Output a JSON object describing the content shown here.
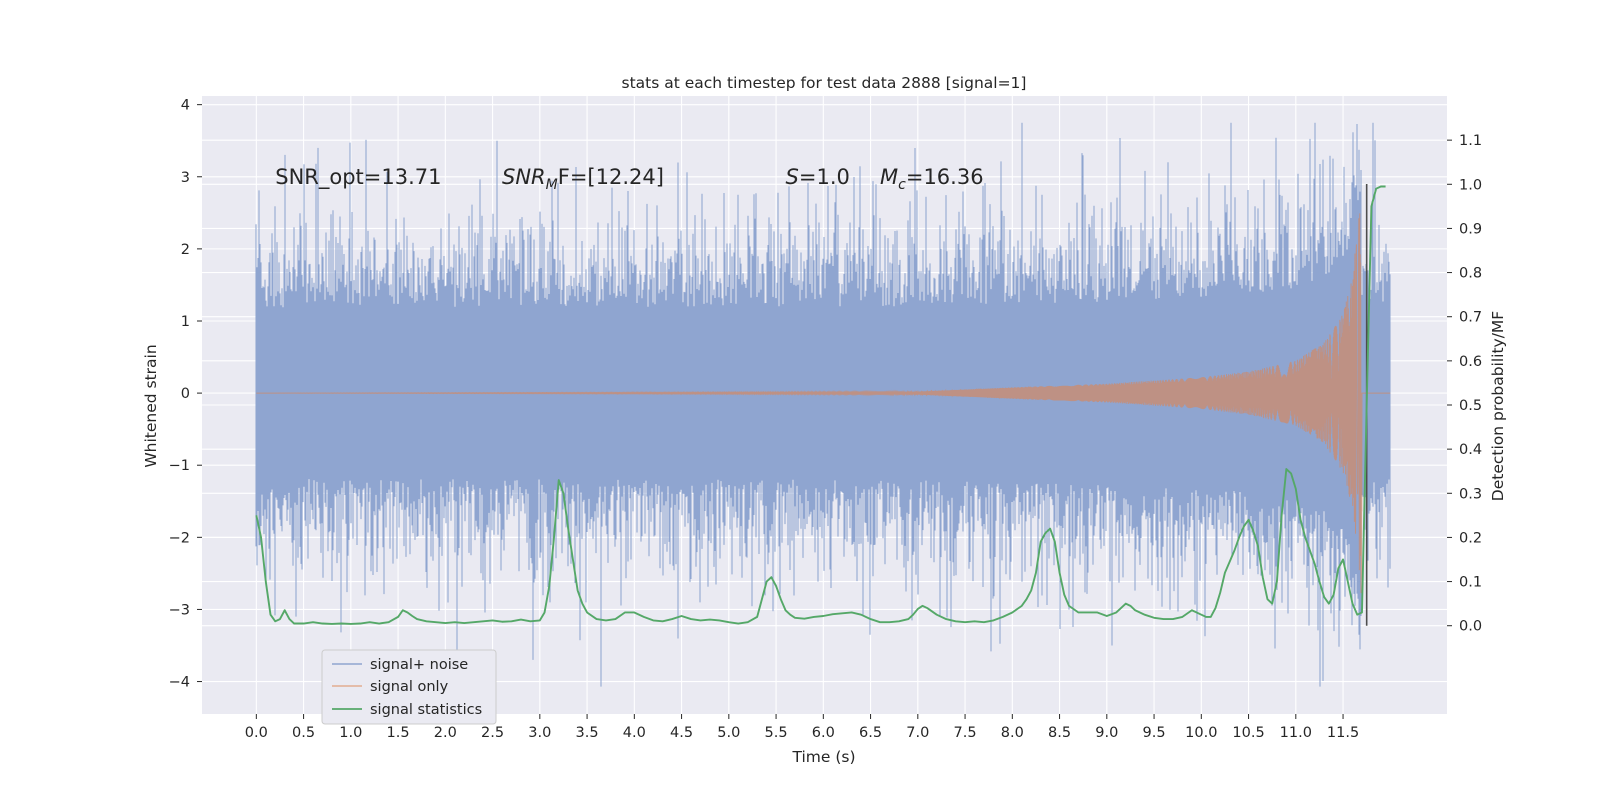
{
  "chart_data": {
    "type": "line",
    "title": "stats at each timestep for test data 2888 [signal=1]",
    "xlabel": "Time (s)",
    "ylabel": "Whitened strain",
    "y2label": "Detection probability/MF",
    "xlim": [
      -0.575,
      12.6
    ],
    "ylim": [
      -4.45,
      4.12
    ],
    "y2lim": [
      -0.2,
      1.2
    ],
    "x_ticks": [
      0.0,
      0.5,
      1.0,
      1.5,
      2.0,
      2.5,
      3.0,
      3.5,
      4.0,
      4.5,
      5.0,
      5.5,
      6.0,
      6.5,
      7.0,
      7.5,
      8.0,
      8.5,
      9.0,
      9.5,
      10.0,
      10.5,
      11.0,
      11.5
    ],
    "x_tick_labels": [
      "0.0",
      "0.5",
      "1.0",
      "1.5",
      "2.0",
      "2.5",
      "3.0",
      "3.5",
      "4.0",
      "4.5",
      "5.0",
      "5.5",
      "6.0",
      "6.5",
      "7.0",
      "7.5",
      "8.0",
      "8.5",
      "9.0",
      "9.5",
      "10.0",
      "10.5",
      "11.0",
      "11.5"
    ],
    "y_ticks": [
      -4,
      -3,
      -2,
      -1,
      0,
      1,
      2,
      3,
      4
    ],
    "y_tick_labels": [
      "−4",
      "−3",
      "−2",
      "−1",
      "0",
      "1",
      "2",
      "3",
      "4"
    ],
    "y2_ticks": [
      0.0,
      0.1,
      0.2,
      0.3,
      0.4,
      0.5,
      0.6,
      0.7,
      0.8,
      0.9,
      1.0,
      1.1
    ],
    "y2_tick_labels": [
      "0.0",
      "0.1",
      "0.2",
      "0.3",
      "0.4",
      "0.5",
      "0.6",
      "0.7",
      "0.8",
      "0.9",
      "1.0",
      "1.1"
    ],
    "grid": true,
    "legend_position": "lower-left",
    "annotations": [
      {
        "prefix": "SNR_opt=13.71",
        "italic": "",
        "sub": "",
        "suffix": "",
        "x": 0.2,
        "y": 2.9
      },
      {
        "prefix": "",
        "italic": "SNR",
        "sub": "M",
        "suffix": "F=[12.24]",
        "x": 2.6,
        "y": 2.9
      },
      {
        "prefix": "",
        "italic": "S",
        "sub": "",
        "suffix": "=1.0",
        "x": 5.6,
        "y": 2.9
      },
      {
        "prefix": "",
        "italic": "M",
        "sub": "c",
        "suffix": "=16.36",
        "x": 6.6,
        "y": 2.9
      }
    ],
    "series": [
      {
        "name": "signal+ noise",
        "axis": "left",
        "color": "#8fa5d0",
        "kind": "noise",
        "t_range": [
          0.0,
          12.0
        ],
        "typical_amplitude": 1.4,
        "max_value": 3.75,
        "min_value": -4.07
      },
      {
        "name": "signal only",
        "axis": "left",
        "color": "#dd8452",
        "kind": "chirp",
        "merger_time": 11.7,
        "amplitude_points": [
          [
            0.0,
            0.0
          ],
          [
            7.0,
            0.02
          ],
          [
            8.0,
            0.08
          ],
          [
            9.0,
            0.13
          ],
          [
            10.0,
            0.22
          ],
          [
            10.5,
            0.3
          ],
          [
            11.0,
            0.45
          ],
          [
            11.3,
            0.7
          ],
          [
            11.5,
            1.1
          ],
          [
            11.6,
            1.6
          ],
          [
            11.7,
            2.9
          ]
        ]
      },
      {
        "name": "signal statistics",
        "axis": "right",
        "color": "#55a868",
        "kind": "line",
        "x": [
          0.0,
          0.05,
          0.1,
          0.15,
          0.2,
          0.25,
          0.3,
          0.35,
          0.4,
          0.5,
          0.6,
          0.7,
          0.8,
          0.9,
          1.0,
          1.1,
          1.2,
          1.3,
          1.4,
          1.5,
          1.55,
          1.6,
          1.65,
          1.7,
          1.8,
          1.9,
          2.0,
          2.1,
          2.2,
          2.3,
          2.4,
          2.5,
          2.6,
          2.7,
          2.8,
          2.9,
          3.0,
          3.05,
          3.1,
          3.15,
          3.2,
          3.25,
          3.3,
          3.35,
          3.4,
          3.45,
          3.5,
          3.6,
          3.7,
          3.8,
          3.9,
          4.0,
          4.1,
          4.2,
          4.3,
          4.4,
          4.5,
          4.6,
          4.7,
          4.8,
          4.9,
          5.0,
          5.1,
          5.2,
          5.3,
          5.35,
          5.4,
          5.45,
          5.5,
          5.55,
          5.6,
          5.65,
          5.7,
          5.8,
          5.9,
          6.0,
          6.1,
          6.2,
          6.3,
          6.4,
          6.5,
          6.6,
          6.7,
          6.8,
          6.9,
          6.95,
          7.0,
          7.05,
          7.1,
          7.2,
          7.3,
          7.4,
          7.5,
          7.6,
          7.7,
          7.8,
          7.9,
          8.0,
          8.1,
          8.15,
          8.2,
          8.25,
          8.3,
          8.35,
          8.4,
          8.45,
          8.5,
          8.55,
          8.6,
          8.7,
          8.8,
          8.9,
          9.0,
          9.1,
          9.15,
          9.2,
          9.25,
          9.3,
          9.4,
          9.5,
          9.6,
          9.7,
          9.8,
          9.9,
          10.0,
          10.05,
          10.1,
          10.15,
          10.2,
          10.25,
          10.3,
          10.35,
          10.4,
          10.45,
          10.5,
          10.55,
          10.6,
          10.65,
          10.7,
          10.75,
          10.8,
          10.85,
          10.9,
          10.95,
          11.0,
          11.05,
          11.1,
          11.15,
          11.2,
          11.25,
          11.3,
          11.35,
          11.4,
          11.45,
          11.5,
          11.55,
          11.6,
          11.65,
          11.7,
          11.75,
          11.8,
          11.85,
          11.9,
          11.95
        ],
        "y": [
          0.25,
          0.2,
          0.1,
          0.025,
          0.01,
          0.015,
          0.035,
          0.015,
          0.005,
          0.005,
          0.008,
          0.005,
          0.004,
          0.005,
          0.004,
          0.005,
          0.008,
          0.005,
          0.008,
          0.02,
          0.035,
          0.03,
          0.022,
          0.015,
          0.01,
          0.008,
          0.006,
          0.008,
          0.006,
          0.008,
          0.01,
          0.012,
          0.009,
          0.01,
          0.014,
          0.01,
          0.012,
          0.03,
          0.09,
          0.2,
          0.33,
          0.3,
          0.22,
          0.15,
          0.08,
          0.05,
          0.03,
          0.015,
          0.012,
          0.015,
          0.03,
          0.03,
          0.02,
          0.012,
          0.01,
          0.015,
          0.022,
          0.015,
          0.012,
          0.014,
          0.012,
          0.008,
          0.005,
          0.008,
          0.02,
          0.06,
          0.1,
          0.11,
          0.09,
          0.06,
          0.035,
          0.025,
          0.018,
          0.016,
          0.02,
          0.022,
          0.026,
          0.028,
          0.03,
          0.025,
          0.015,
          0.008,
          0.008,
          0.01,
          0.015,
          0.025,
          0.038,
          0.045,
          0.04,
          0.025,
          0.015,
          0.01,
          0.008,
          0.01,
          0.008,
          0.012,
          0.02,
          0.03,
          0.045,
          0.06,
          0.08,
          0.12,
          0.19,
          0.21,
          0.22,
          0.19,
          0.12,
          0.07,
          0.045,
          0.03,
          0.03,
          0.03,
          0.022,
          0.03,
          0.04,
          0.05,
          0.045,
          0.035,
          0.025,
          0.018,
          0.015,
          0.015,
          0.02,
          0.035,
          0.025,
          0.02,
          0.02,
          0.04,
          0.075,
          0.12,
          0.145,
          0.17,
          0.2,
          0.225,
          0.24,
          0.215,
          0.18,
          0.11,
          0.06,
          0.05,
          0.1,
          0.25,
          0.355,
          0.345,
          0.31,
          0.24,
          0.2,
          0.17,
          0.14,
          0.1,
          0.065,
          0.05,
          0.07,
          0.13,
          0.15,
          0.1,
          0.05,
          0.025,
          0.03,
          0.5,
          0.95,
          0.99,
          0.995,
          0.995
        ]
      }
    ]
  }
}
